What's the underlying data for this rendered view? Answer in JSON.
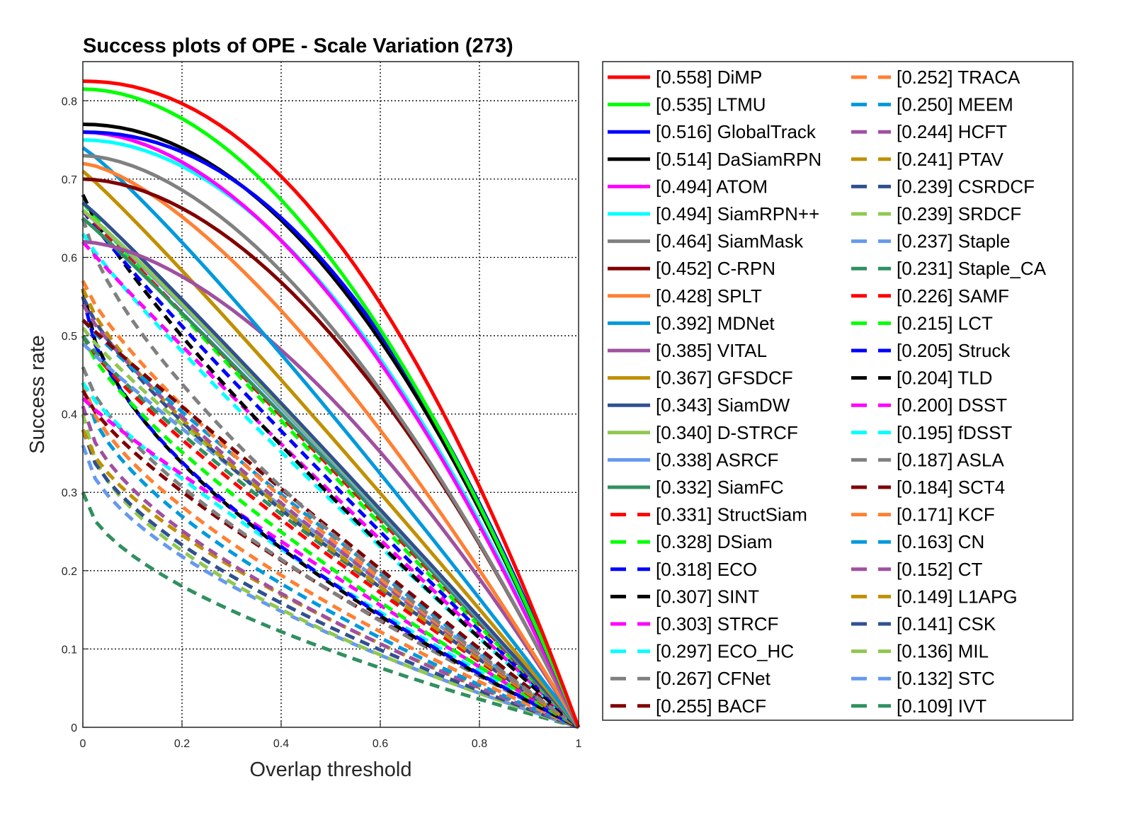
{
  "chart_data": {
    "type": "line",
    "title": "Success plots of OPE - Scale Variation (273)",
    "xlabel": "Overlap threshold",
    "ylabel": "Success rate",
    "xlim": [
      0,
      1
    ],
    "ylim": [
      0,
      0.85
    ],
    "xticks": [
      0,
      0.2,
      0.4,
      0.6,
      0.8,
      1
    ],
    "xtick_labels": [
      "0",
      "0.2",
      "0.4",
      "0.6",
      "0.8",
      "1"
    ],
    "yticks": [
      0,
      0.1,
      0.2,
      0.3,
      0.4,
      0.5,
      0.6,
      0.7,
      0.8
    ],
    "ytick_labels": [
      "0",
      "0.1",
      "0.2",
      "0.3",
      "0.4",
      "0.5",
      "0.6",
      "0.7",
      "0.8"
    ],
    "grid": "dotted",
    "legend_position": "right",
    "series": [
      {
        "name": "[0.558] DiMP",
        "auc": 0.558,
        "start": 0.825,
        "color": "#ff0000",
        "style": "solid"
      },
      {
        "name": "[0.535] LTMU",
        "auc": 0.535,
        "start": 0.815,
        "color": "#00ff00",
        "style": "solid"
      },
      {
        "name": "[0.516] GlobalTrack",
        "auc": 0.516,
        "start": 0.76,
        "color": "#0000ff",
        "style": "solid"
      },
      {
        "name": "[0.514] DaSiamRPN",
        "auc": 0.514,
        "start": 0.77,
        "color": "#000000",
        "style": "solid"
      },
      {
        "name": "[0.494] ATOM",
        "auc": 0.494,
        "start": 0.76,
        "color": "#ff00ff",
        "style": "solid"
      },
      {
        "name": "[0.494] SiamRPN++",
        "auc": 0.494,
        "start": 0.75,
        "color": "#00ffff",
        "style": "solid"
      },
      {
        "name": "[0.464] SiamMask",
        "auc": 0.464,
        "start": 0.73,
        "color": "#808080",
        "style": "solid"
      },
      {
        "name": "[0.452] C-RPN",
        "auc": 0.452,
        "start": 0.7,
        "color": "#800000",
        "style": "solid"
      },
      {
        "name": "[0.428] SPLT",
        "auc": 0.428,
        "start": 0.72,
        "color": "#ff8033",
        "style": "solid"
      },
      {
        "name": "[0.392] MDNet",
        "auc": 0.392,
        "start": 0.74,
        "color": "#0099dd",
        "style": "solid"
      },
      {
        "name": "[0.385] VITAL",
        "auc": 0.385,
        "start": 0.62,
        "color": "#a050a0",
        "style": "solid"
      },
      {
        "name": "[0.367] GFSDCF",
        "auc": 0.367,
        "start": 0.71,
        "color": "#c09000",
        "style": "solid"
      },
      {
        "name": "[0.343] SiamDW",
        "auc": 0.343,
        "start": 0.67,
        "color": "#305090",
        "style": "solid"
      },
      {
        "name": "[0.340] D-STRCF",
        "auc": 0.34,
        "start": 0.66,
        "color": "#90c850",
        "style": "solid"
      },
      {
        "name": "[0.338] ASRCF",
        "auc": 0.338,
        "start": 0.66,
        "color": "#6699ee",
        "style": "solid"
      },
      {
        "name": "[0.332] SiamFC",
        "auc": 0.332,
        "start": 0.65,
        "color": "#309060",
        "style": "solid"
      },
      {
        "name": "[0.331] StructSiam",
        "auc": 0.331,
        "start": 0.66,
        "color": "#ff0000",
        "style": "dashed"
      },
      {
        "name": "[0.328] DSiam",
        "auc": 0.328,
        "start": 0.67,
        "color": "#00ff00",
        "style": "dashed"
      },
      {
        "name": "[0.318] ECO",
        "auc": 0.318,
        "start": 0.66,
        "color": "#0000ff",
        "style": "dashed"
      },
      {
        "name": "[0.307] SINT",
        "auc": 0.307,
        "start": 0.68,
        "color": "#000000",
        "style": "dashed"
      },
      {
        "name": "[0.303] STRCF",
        "auc": 0.303,
        "start": 0.62,
        "color": "#ff00ff",
        "style": "dashed"
      },
      {
        "name": "[0.297] ECO_HC",
        "auc": 0.297,
        "start": 0.63,
        "color": "#00ffff",
        "style": "dashed"
      },
      {
        "name": "[0.267] CFNet",
        "auc": 0.267,
        "start": 0.65,
        "color": "#808080",
        "style": "dashed"
      },
      {
        "name": "[0.255] BACF",
        "auc": 0.255,
        "start": 0.52,
        "color": "#800000",
        "style": "dashed"
      },
      {
        "name": "[0.252] TRACA",
        "auc": 0.252,
        "start": 0.57,
        "color": "#ff8033",
        "style": "dashed"
      },
      {
        "name": "[0.250] MEEM",
        "auc": 0.25,
        "start": 0.52,
        "color": "#0099dd",
        "style": "dashed"
      },
      {
        "name": "[0.244] HCFT",
        "auc": 0.244,
        "start": 0.54,
        "color": "#a050a0",
        "style": "dashed"
      },
      {
        "name": "[0.241] PTAV",
        "auc": 0.241,
        "start": 0.56,
        "color": "#c09000",
        "style": "dashed"
      },
      {
        "name": "[0.239] CSRDCF",
        "auc": 0.239,
        "start": 0.55,
        "color": "#305090",
        "style": "dashed"
      },
      {
        "name": "[0.239] SRDCF",
        "auc": 0.239,
        "start": 0.51,
        "color": "#90c850",
        "style": "dashed"
      },
      {
        "name": "[0.237] Staple",
        "auc": 0.237,
        "start": 0.49,
        "color": "#6699ee",
        "style": "dashed"
      },
      {
        "name": "[0.231] Staple_CA",
        "auc": 0.231,
        "start": 0.5,
        "color": "#309060",
        "style": "dashed"
      },
      {
        "name": "[0.226] SAMF",
        "auc": 0.226,
        "start": 0.5,
        "color": "#ff0000",
        "style": "dashed"
      },
      {
        "name": "[0.215] LCT",
        "auc": 0.215,
        "start": 0.5,
        "color": "#00ff00",
        "style": "dashed"
      },
      {
        "name": "[0.205] Struck",
        "auc": 0.205,
        "start": 0.55,
        "color": "#0000ff",
        "style": "dashed"
      },
      {
        "name": "[0.204] TLD",
        "auc": 0.204,
        "start": 0.56,
        "color": "#000000",
        "style": "dashed"
      },
      {
        "name": "[0.200] DSST",
        "auc": 0.2,
        "start": 0.42,
        "color": "#ff00ff",
        "style": "dashed"
      },
      {
        "name": "[0.195] fDSST",
        "auc": 0.195,
        "start": 0.44,
        "color": "#00ffff",
        "style": "dashed"
      },
      {
        "name": "[0.187] ASLA",
        "auc": 0.187,
        "start": 0.46,
        "color": "#808080",
        "style": "dashed"
      },
      {
        "name": "[0.184] SCT4",
        "auc": 0.184,
        "start": 0.43,
        "color": "#800000",
        "style": "dashed"
      },
      {
        "name": "[0.171] KCF",
        "auc": 0.171,
        "start": 0.44,
        "color": "#ff8033",
        "style": "dashed"
      },
      {
        "name": "[0.163] CN",
        "auc": 0.163,
        "start": 0.44,
        "color": "#0099dd",
        "style": "dashed"
      },
      {
        "name": "[0.152] CT",
        "auc": 0.152,
        "start": 0.41,
        "color": "#a050a0",
        "style": "dashed"
      },
      {
        "name": "[0.149] L1APG",
        "auc": 0.149,
        "start": 0.38,
        "color": "#c09000",
        "style": "dashed"
      },
      {
        "name": "[0.141] CSK",
        "auc": 0.141,
        "start": 0.38,
        "color": "#305090",
        "style": "dashed"
      },
      {
        "name": "[0.136] MIL",
        "auc": 0.136,
        "start": 0.4,
        "color": "#90c850",
        "style": "dashed"
      },
      {
        "name": "[0.132] STC",
        "auc": 0.132,
        "start": 0.36,
        "color": "#6699ee",
        "style": "dashed"
      },
      {
        "name": "[0.109] IVT",
        "auc": 0.109,
        "start": 0.3,
        "color": "#309060",
        "style": "dashed"
      }
    ]
  }
}
